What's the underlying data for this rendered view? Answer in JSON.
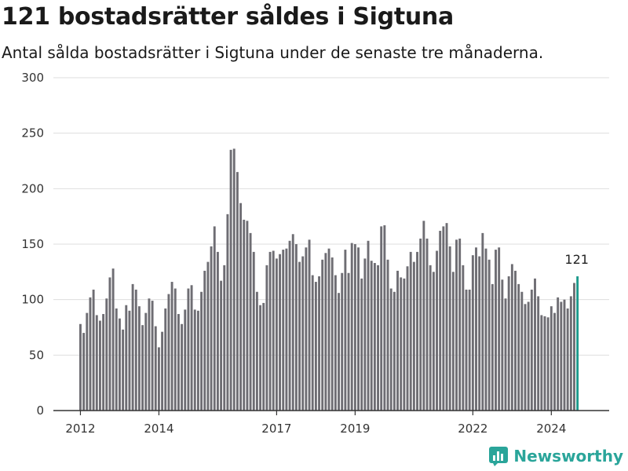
{
  "chart_data": {
    "type": "bar",
    "title": "121 bostadsrätter såldes i Sigtuna",
    "subtitle": "Antal sålda bostadsrätter i Sigtuna under de senaste tre månaderna.",
    "xlabel": "",
    "ylabel": "",
    "ylim": [
      0,
      300
    ],
    "yticks": [
      0,
      50,
      100,
      150,
      200,
      250,
      300
    ],
    "xticks": [
      "2012",
      "2014",
      "2017",
      "2019",
      "2022",
      "2024"
    ],
    "grid": true,
    "bar_color": "#6e6d73",
    "highlight_color": "#1c9a8c",
    "highlight_last": true,
    "annotation": "121",
    "values": [
      78,
      70,
      88,
      102,
      109,
      86,
      81,
      87,
      101,
      120,
      128,
      92,
      83,
      73,
      95,
      90,
      114,
      109,
      94,
      77,
      88,
      101,
      99,
      76,
      57,
      71,
      92,
      105,
      116,
      110,
      87,
      78,
      91,
      110,
      113,
      91,
      90,
      107,
      126,
      134,
      148,
      166,
      143,
      117,
      131,
      177,
      235,
      236,
      215,
      187,
      172,
      171,
      160,
      143,
      107,
      95,
      97,
      131,
      143,
      144,
      137,
      141,
      145,
      146,
      153,
      159,
      150,
      134,
      139,
      147,
      154,
      122,
      116,
      121,
      136,
      142,
      146,
      138,
      122,
      106,
      124,
      145,
      124,
      151,
      150,
      147,
      119,
      137,
      153,
      135,
      133,
      131,
      166,
      167,
      136,
      110,
      107,
      126,
      120,
      119,
      130,
      143,
      134,
      143,
      155,
      171,
      155,
      131,
      125,
      144,
      162,
      166,
      169,
      148,
      125,
      154,
      155,
      131,
      109,
      109,
      140,
      147,
      139,
      160,
      146,
      136,
      114,
      145,
      147,
      118,
      101,
      121,
      132,
      126,
      114,
      107,
      96,
      98,
      109,
      119,
      103,
      86,
      85,
      84,
      94,
      88,
      102,
      98,
      100,
      92,
      103,
      115,
      121
    ]
  },
  "brand": {
    "name": "Newsworthy",
    "icon": "newsworthy-logo-icon",
    "color": "#2aa59a"
  }
}
